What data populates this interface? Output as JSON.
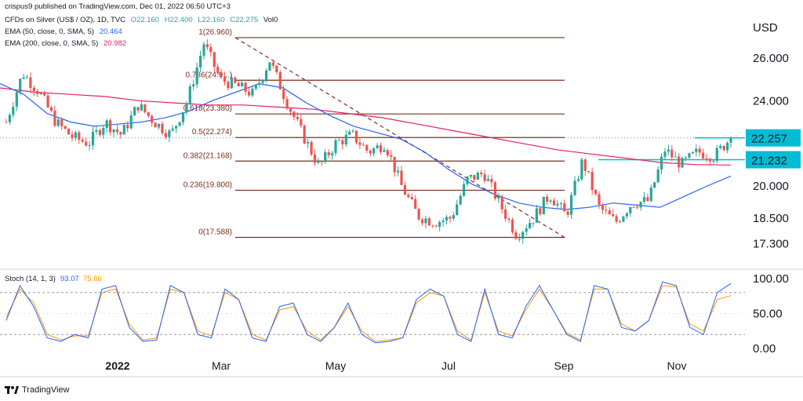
{
  "header": {
    "published": "crispus9 published on TradingView.com, Dec 01, 2022 06:50 UTC+3",
    "symbol": "CFDs on Silver (US$ / OZ), 1D, TVC",
    "ohlc": {
      "o": "O22.160",
      "h": "H22.400",
      "l": "L22.160",
      "c": "C22.275",
      "vol": "Vol0"
    },
    "ema50_label": "EMA (50, close, 0, SMA, 5)",
    "ema50_value": "20.464",
    "ema200_label": "EMA (200, close, 0, SMA, 5)",
    "ema200_value": "20.982"
  },
  "footer": {
    "brand": "TradingView"
  },
  "colors": {
    "up": "#26a69a",
    "down": "#ef5350",
    "ema50": "#2962ff",
    "ema200": "#e91e63",
    "fib": "#7b2d1e",
    "highlight": "#00bcd4",
    "stoch_k": "#2962ff",
    "stoch_d": "#ff9800"
  },
  "chart_data": [
    {
      "type": "candlestick",
      "currency": "USD",
      "y_ticks": [
        26.0,
        24.0,
        22.0,
        20.0,
        18.5,
        17.3
      ],
      "y_tick_labels": [
        "26.000",
        "24.000",
        "20.000",
        "18.500",
        "17.300"
      ],
      "x_ticks": [
        "2022",
        "Mar",
        "May",
        "Jul",
        "Sep",
        "Nov"
      ],
      "price_tags": [
        {
          "label": "22.257",
          "value": 22.257
        },
        {
          "label": "21.232",
          "value": 21.232
        }
      ],
      "fib_levels": [
        {
          "label": "1(26.960)",
          "value": 26.96
        },
        {
          "label": "0.786(24.9...)",
          "value": 24.96
        },
        {
          "label": "0.618(23.380)",
          "value": 23.38
        },
        {
          "label": "0.5(22.274)",
          "value": 22.274
        },
        {
          "label": "0.382(21.168)",
          "value": 21.168
        },
        {
          "label": "0.236(19.800)",
          "value": 19.8
        },
        {
          "label": "0(17.588)",
          "value": 17.588
        }
      ],
      "trendline": {
        "from": "Mar",
        "to": "Sep",
        "start": 26.96,
        "end": 17.588
      },
      "candle_path": [
        {
          "t": "Dec 2021",
          "v": 23.0
        },
        {
          "t": "Dec 2021",
          "v": 25.3
        },
        {
          "t": "Dec 2021",
          "v": 24.4
        },
        {
          "t": "Jan 2022",
          "v": 23.0
        },
        {
          "t": "Jan 2022",
          "v": 22.3
        },
        {
          "t": "Jan 2022",
          "v": 22.0
        },
        {
          "t": "Jan 2022",
          "v": 23.0
        },
        {
          "t": "Feb 2022",
          "v": 22.4
        },
        {
          "t": "Feb 2022",
          "v": 23.8
        },
        {
          "t": "Feb 2022",
          "v": 23.0
        },
        {
          "t": "Feb 2022",
          "v": 22.4
        },
        {
          "t": "Feb 2022",
          "v": 24.0
        },
        {
          "t": "Mar 2022",
          "v": 26.7
        },
        {
          "t": "Mar 2022",
          "v": 25.0
        },
        {
          "t": "Mar 2022",
          "v": 24.7
        },
        {
          "t": "Apr 2022",
          "v": 24.3
        },
        {
          "t": "Apr 2022",
          "v": 25.9
        },
        {
          "t": "Apr 2022",
          "v": 24.0
        },
        {
          "t": "May 2022",
          "v": 22.4
        },
        {
          "t": "May 2022",
          "v": 20.9
        },
        {
          "t": "May 2022",
          "v": 22.0
        },
        {
          "t": "Jun 2022",
          "v": 22.4
        },
        {
          "t": "Jun 2022",
          "v": 21.6
        },
        {
          "t": "Jun 2022",
          "v": 22.0
        },
        {
          "t": "Jul 2022",
          "v": 20.0
        },
        {
          "t": "Jul 2022",
          "v": 18.6
        },
        {
          "t": "Jul 2022",
          "v": 18.3
        },
        {
          "t": "Jul 2022",
          "v": 18.5
        },
        {
          "t": "Aug 2022",
          "v": 20.3
        },
        {
          "t": "Aug 2022",
          "v": 20.6
        },
        {
          "t": "Aug 2022",
          "v": 19.1
        },
        {
          "t": "Sep 2022",
          "v": 17.7
        },
        {
          "t": "Sep 2022",
          "v": 18.5
        },
        {
          "t": "Sep 2022",
          "v": 19.6
        },
        {
          "t": "Sep 2022",
          "v": 18.6
        },
        {
          "t": "Oct 2022",
          "v": 21.2
        },
        {
          "t": "Oct 2022",
          "v": 19.0
        },
        {
          "t": "Oct 2022",
          "v": 18.3
        },
        {
          "t": "Oct 2022",
          "v": 19.2
        },
        {
          "t": "Nov 2022",
          "v": 19.3
        },
        {
          "t": "Nov 2022",
          "v": 21.7
        },
        {
          "t": "Nov 2022",
          "v": 21.0
        },
        {
          "t": "Nov 2022",
          "v": 21.6
        },
        {
          "t": "Nov 2022",
          "v": 21.4
        },
        {
          "t": "Dec 2022",
          "v": 22.275
        }
      ],
      "ema50_path": [
        24.8,
        24.3,
        23.4,
        23.0,
        22.8,
        22.9,
        23.0,
        23.2,
        23.5,
        24.0,
        24.4,
        24.8,
        24.6,
        23.9,
        23.3,
        22.8,
        22.5,
        22.2,
        21.6,
        20.8,
        20.1,
        19.6,
        19.2,
        19.0,
        18.9,
        19.0,
        19.2,
        19.1,
        19.0,
        19.5,
        20.0,
        20.464
      ],
      "ema200_path": [
        24.6,
        24.4,
        24.3,
        24.2,
        24.0,
        23.9,
        23.8,
        23.8,
        23.7,
        23.6,
        23.4,
        23.2,
        22.9,
        22.6,
        22.3,
        22.0,
        21.7,
        21.5,
        21.3,
        21.1,
        21.0,
        20.982
      ]
    },
    {
      "type": "line",
      "title": "Stoch (14, 1, 3)",
      "values_label": [
        "93.07",
        "75.66"
      ],
      "y_ticks": [
        100,
        50,
        0
      ],
      "y_tick_labels": [
        "100.00",
        "50.00",
        "0.00"
      ],
      "guide_levels": [
        80,
        20
      ],
      "series": [
        {
          "name": "%K",
          "values": [
            40,
            90,
            60,
            15,
            10,
            20,
            15,
            85,
            90,
            30,
            10,
            12,
            90,
            80,
            20,
            15,
            85,
            70,
            15,
            10,
            60,
            65,
            20,
            10,
            30,
            65,
            20,
            8,
            10,
            15,
            70,
            85,
            75,
            20,
            10,
            85,
            20,
            15,
            60,
            90,
            55,
            20,
            10,
            90,
            85,
            30,
            25,
            40,
            95,
            90,
            30,
            20,
            80,
            93.07
          ]
        },
        {
          "name": "%D",
          "values": [
            45,
            85,
            65,
            20,
            12,
            18,
            18,
            80,
            85,
            35,
            12,
            15,
            85,
            80,
            25,
            18,
            80,
            70,
            20,
            12,
            55,
            60,
            25,
            12,
            30,
            60,
            25,
            10,
            12,
            15,
            65,
            80,
            75,
            25,
            12,
            80,
            25,
            18,
            55,
            85,
            55,
            22,
            12,
            85,
            85,
            35,
            25,
            40,
            90,
            88,
            35,
            25,
            70,
            75.66
          ]
        }
      ]
    }
  ]
}
